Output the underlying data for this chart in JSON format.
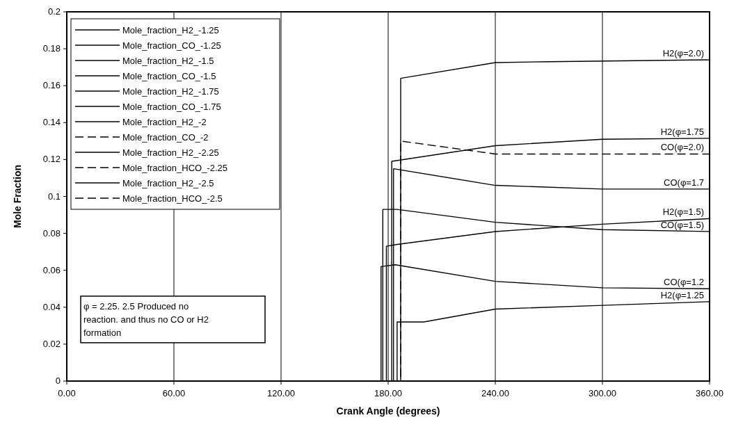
{
  "chart_data": {
    "type": "line",
    "xlabel": "Crank Angle (degrees)",
    "ylabel": "Mole Fraction",
    "xlim": [
      0,
      360
    ],
    "xticks": [
      {
        "value": 0,
        "label": "0.00"
      },
      {
        "value": 60,
        "label": "60.00"
      },
      {
        "value": 120,
        "label": "120.00"
      },
      {
        "value": 180,
        "label": "180.00"
      },
      {
        "value": 240,
        "label": "240.00"
      },
      {
        "value": 300,
        "label": "300.00"
      },
      {
        "value": 360,
        "label": "360.00"
      }
    ],
    "ylim": [
      0,
      0.2
    ],
    "yticks": [
      0,
      0.02,
      0.04,
      0.06,
      0.08,
      0.1,
      0.12,
      0.14,
      0.16,
      0.18,
      0.2
    ],
    "grid": "x",
    "legend": "top left",
    "line_style": "solid",
    "series": [
      {
        "name": "Mole_fraction_H2_-1.25",
        "color": "#000000",
        "x": [
          0,
          185,
          185,
          200,
          240,
          300,
          360
        ],
        "values": [
          0,
          0,
          0.032,
          0.032,
          0.039,
          0.041,
          0.043
        ]
      },
      {
        "name": "Mole_fraction_CO_-1.25",
        "color": "#000000",
        "x": [
          0,
          176,
          176,
          184,
          240,
          300,
          360
        ],
        "values": [
          0,
          0,
          0.062,
          0.063,
          0.054,
          0.0505,
          0.05
        ]
      },
      {
        "name": "Mole_fraction_H2_-1.5",
        "color": "#000000",
        "x": [
          0,
          179,
          179,
          185,
          240,
          300,
          360
        ],
        "values": [
          0,
          0,
          0.073,
          0.074,
          0.081,
          0.085,
          0.088
        ]
      },
      {
        "name": "Mole_fraction_CO_-1.5",
        "color": "#000000",
        "x": [
          0,
          177,
          177,
          185,
          240,
          300,
          360
        ],
        "values": [
          0,
          0,
          0.093,
          0.093,
          0.086,
          0.082,
          0.081
        ]
      },
      {
        "name": "Mole_fraction_H2_-1.75",
        "color": "#000000",
        "x": [
          0,
          182,
          182,
          240,
          300,
          360
        ],
        "values": [
          0,
          0,
          0.119,
          0.1275,
          0.131,
          0.1315
        ]
      },
      {
        "name": "Mole_fraction_CO_-1.75",
        "color": "#000000",
        "x": [
          0,
          183,
          183,
          240,
          300,
          360
        ],
        "values": [
          0,
          0,
          0.115,
          0.106,
          0.104,
          0.104
        ]
      },
      {
        "name": "Mole_fraction_H2_-2",
        "color": "#000000",
        "x": [
          0,
          187,
          187,
          240,
          270,
          360
        ],
        "values": [
          0,
          0,
          0.164,
          0.1725,
          0.173,
          0.174
        ]
      },
      {
        "name": "Mole_fraction_CO_-2",
        "color": "#000000",
        "line_style": "dashed",
        "x": [
          0,
          187,
          187,
          240,
          360
        ],
        "values": [
          0,
          0,
          0.13,
          0.123,
          0.123
        ]
      },
      {
        "name": "Mole_fraction_H2_-2.25",
        "color": "#000000"
      },
      {
        "name": "Mole_fraction_HCO_-2.25",
        "color": "#000000",
        "line_style": "dashed"
      },
      {
        "name": "Mole_fraction_H2_-2.5",
        "color": "#000000"
      },
      {
        "name": "Mole_fraction_HCO_-2.5",
        "color": "#000000",
        "line_style": "dashed"
      }
    ],
    "annotations": [
      {
        "text": "H2(φ=2.0)",
        "y": 0.174
      },
      {
        "text": "H2(φ=1.75",
        "y": 0.1315
      },
      {
        "text": "CO(φ=2.0)",
        "y": 0.123
      },
      {
        "text": "CO(φ=1.7",
        "y": 0.104
      },
      {
        "text": "H2(φ=1.5)",
        "y": 0.088
      },
      {
        "text": "CO(φ=1.5)",
        "y": 0.081
      },
      {
        "text": "CO(φ=1.2",
        "y": 0.05
      },
      {
        "text": "H2(φ=1.25",
        "y": 0.043
      },
      "φ = 2.25. 2.5 Produced no reaction. and thus no CO or H2 formation"
    ]
  }
}
